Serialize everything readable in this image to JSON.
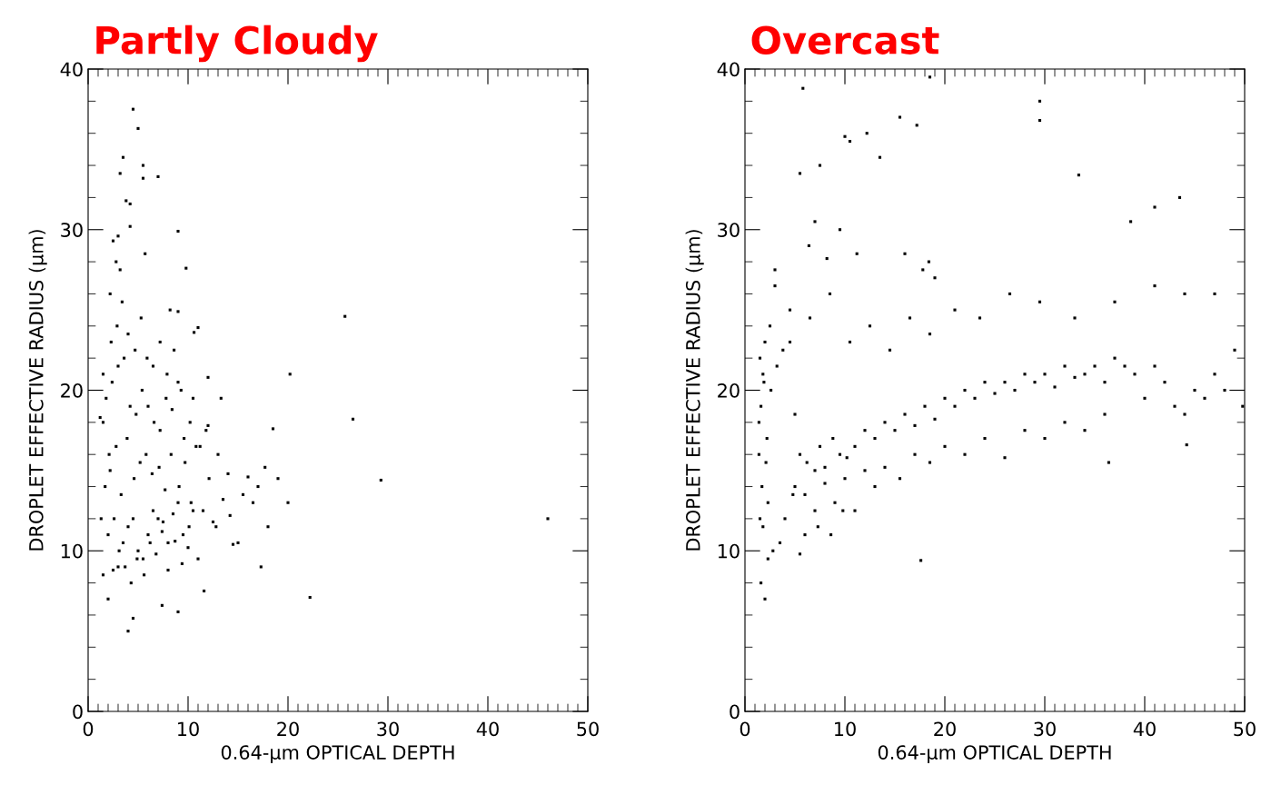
{
  "chart_data": [
    {
      "type": "scatter",
      "title": "Partly Cloudy",
      "xlabel": "0.64-μm OPTICAL DEPTH",
      "ylabel": "DROPLET EFFECTIVE RADIUS (μm)",
      "color": "#000000",
      "marker": "square",
      "xlim": [
        0,
        50
      ],
      "ylim": [
        0,
        40
      ],
      "xticks": [
        0,
        10,
        20,
        30,
        40,
        50
      ],
      "yticks": [
        0,
        10,
        20,
        30,
        40
      ],
      "x": [
        4.5,
        5.0,
        3.5,
        3.2,
        5.5,
        5.5,
        7.0,
        3.8,
        4.2,
        4.2,
        9.0,
        9.8,
        5.7,
        25.7,
        26.5,
        20.2,
        29.3,
        46.0,
        22.2,
        17.3,
        4.0,
        4.5,
        11.0,
        10.6,
        8.2,
        9.0,
        2.5,
        3.0,
        2.8,
        3.2,
        2.2,
        1.5,
        1.2,
        1.5,
        19.0,
        18.5,
        17.7,
        18.0,
        15.0,
        14.5,
        13.3,
        12.0,
        16.0,
        17.0,
        20.0,
        9.0,
        11.6,
        7.4,
        2.0,
        1.5,
        2.5,
        3.0,
        3.5,
        4.0,
        4.5,
        5.0,
        5.5,
        6.0,
        6.5,
        7.0,
        7.5,
        8.0,
        8.5,
        9.0,
        9.5,
        10.0,
        10.5,
        11.0,
        2.2,
        2.8,
        3.3,
        3.9,
        4.6,
        5.2,
        5.8,
        6.4,
        7.1,
        7.7,
        8.3,
        9.1,
        9.7,
        10.3,
        11.2,
        12.1,
        2.0,
        2.6,
        3.1,
        3.7,
        4.3,
        4.9,
        5.6,
        6.2,
        6.8,
        7.4,
        8.0,
        8.7,
        9.4,
        10.1,
        11.5,
        12.5,
        13.5,
        14.2,
        1.8,
        2.4,
        3.0,
        3.6,
        4.2,
        4.8,
        5.4,
        6.0,
        6.6,
        7.2,
        7.8,
        8.4,
        9.0,
        9.6,
        10.2,
        10.8,
        12.0,
        13.0,
        15.5,
        16.5,
        2.3,
        2.9,
        3.4,
        4.0,
        4.7,
        5.3,
        5.9,
        6.5,
        7.2,
        7.9,
        8.6,
        9.3,
        10.5,
        11.8,
        1.3,
        1.7,
        2.1,
        12.8,
        14.0
      ],
      "values": [
        37.5,
        36.3,
        34.5,
        33.5,
        34.0,
        33.2,
        33.3,
        31.8,
        31.6,
        30.2,
        29.9,
        27.6,
        28.5,
        24.6,
        18.2,
        21.0,
        14.4,
        12.0,
        7.1,
        9.0,
        5.0,
        5.8,
        23.9,
        23.6,
        25.0,
        24.9,
        29.3,
        29.6,
        28.0,
        27.5,
        26.0,
        21.0,
        18.3,
        18.0,
        14.5,
        17.6,
        15.2,
        11.5,
        10.5,
        10.4,
        19.5,
        20.8,
        14.6,
        14.0,
        13.0,
        6.2,
        7.5,
        6.6,
        7.0,
        8.5,
        8.8,
        9.0,
        10.5,
        11.5,
        12.0,
        10.0,
        9.5,
        11.0,
        12.5,
        12.0,
        11.8,
        10.5,
        12.3,
        13.0,
        11.0,
        10.2,
        12.5,
        9.5,
        15.0,
        16.5,
        13.5,
        17.0,
        14.5,
        15.5,
        16.0,
        14.8,
        15.2,
        13.8,
        16.0,
        14.0,
        15.5,
        13.0,
        16.5,
        14.5,
        11.0,
        12.0,
        10.0,
        9.0,
        8.0,
        9.5,
        8.5,
        10.5,
        9.8,
        11.2,
        8.8,
        10.6,
        9.2,
        11.5,
        12.5,
        11.8,
        13.2,
        12.2,
        19.5,
        20.5,
        21.5,
        22.0,
        19.0,
        18.5,
        20.0,
        19.0,
        18.0,
        17.5,
        19.5,
        18.8,
        20.5,
        17.0,
        18.0,
        16.5,
        17.8,
        16.0,
        13.5,
        13.0,
        23.0,
        24.0,
        25.5,
        23.5,
        22.5,
        24.5,
        22.0,
        21.5,
        23.0,
        21.0,
        22.5,
        20.0,
        19.5,
        17.5,
        12.0,
        14.0,
        16.0,
        11.5,
        14.8
      ]
    },
    {
      "type": "scatter",
      "title": "Overcast",
      "xlabel": "0.64-μm OPTICAL DEPTH",
      "ylabel": "DROPLET EFFECTIVE RADIUS (μm)",
      "color": "#000000",
      "marker": "square",
      "xlim": [
        0,
        50
      ],
      "ylim": [
        0,
        40
      ],
      "xticks": [
        0,
        10,
        20,
        30,
        40,
        50
      ],
      "yticks": [
        0,
        10,
        20,
        30,
        40
      ],
      "x": [
        1.5,
        1.8,
        2.0,
        1.6,
        1.9,
        2.5,
        3.0,
        2.2,
        1.4,
        1.7,
        2.1,
        1.5,
        1.8,
        2.3,
        1.6,
        2.0,
        1.4,
        2.6,
        3.2,
        3.8,
        4.5,
        5.0,
        5.5,
        6.2,
        7.0,
        7.5,
        8.0,
        8.8,
        9.5,
        10.2,
        11.0,
        12.0,
        13.0,
        14.0,
        15.0,
        16.0,
        17.0,
        18.0,
        19.0,
        20.0,
        21.0,
        22.0,
        23.0,
        24.0,
        25.0,
        26.0,
        27.0,
        28.0,
        29.0,
        30.0,
        31.0,
        32.0,
        33.0,
        34.0,
        35.0,
        36.0,
        37.0,
        38.0,
        39.0,
        40.0,
        41.0,
        42.0,
        43.0,
        44.0,
        45.0,
        46.0,
        47.0,
        48.0,
        49.0,
        49.8,
        5.0,
        6.0,
        7.0,
        8.0,
        9.0,
        10.0,
        11.0,
        12.0,
        13.0,
        14.0,
        15.5,
        17.0,
        18.5,
        20.0,
        22.0,
        24.0,
        26.0,
        28.0,
        30.0,
        32.0,
        34.0,
        36.0,
        3.0,
        4.5,
        6.5,
        8.5,
        10.5,
        12.5,
        14.5,
        16.5,
        18.5,
        21.0,
        23.5,
        26.5,
        29.5,
        33.0,
        37.0,
        41.0,
        44.0,
        47.0,
        5.5,
        7.5,
        10.5,
        12.2,
        13.5,
        15.5,
        17.2,
        18.5,
        29.5,
        29.5,
        43.5,
        41.0,
        38.6,
        33.4,
        7.0,
        8.2,
        9.5,
        11.2,
        18.4,
        16.0,
        17.8,
        19.0,
        36.4,
        44.2,
        2.3,
        2.8,
        3.5,
        4.0,
        4.8,
        5.5,
        6.0,
        7.3,
        8.6,
        9.8,
        5.8,
        6.4,
        10.0,
        17.6
      ],
      "values": [
        22.0,
        21.0,
        23.0,
        19.0,
        20.5,
        24.0,
        26.5,
        17.0,
        16.0,
        14.0,
        15.5,
        12.0,
        11.5,
        13.0,
        8.0,
        7.0,
        18.0,
        20.0,
        21.5,
        22.5,
        23.0,
        18.5,
        16.0,
        15.5,
        15.0,
        16.5,
        15.2,
        17.0,
        16.0,
        15.8,
        16.5,
        17.5,
        17.0,
        18.0,
        17.5,
        18.5,
        17.8,
        19.0,
        18.2,
        19.5,
        19.0,
        20.0,
        19.5,
        20.5,
        19.8,
        20.5,
        20.0,
        21.0,
        20.5,
        21.0,
        20.2,
        21.5,
        20.8,
        21.0,
        21.5,
        20.5,
        22.0,
        21.5,
        21.0,
        19.5,
        21.5,
        20.5,
        19.0,
        18.5,
        20.0,
        19.5,
        21.0,
        20.0,
        22.5,
        19.0,
        14.0,
        13.5,
        12.5,
        14.2,
        13.0,
        14.5,
        12.5,
        15.0,
        14.0,
        15.2,
        14.5,
        16.0,
        15.5,
        16.5,
        16.0,
        17.0,
        15.8,
        17.5,
        17.0,
        18.0,
        17.5,
        18.5,
        27.5,
        25.0,
        24.5,
        26.0,
        23.0,
        24.0,
        22.5,
        24.5,
        23.5,
        25.0,
        24.5,
        26.0,
        25.5,
        24.5,
        25.5,
        26.5,
        26.0,
        26.0,
        33.5,
        34.0,
        35.5,
        36.0,
        34.5,
        37.0,
        36.5,
        39.5,
        38.0,
        36.8,
        32.0,
        31.4,
        30.5,
        33.4,
        30.5,
        28.2,
        30.0,
        28.5,
        28.0,
        28.5,
        27.5,
        27.0,
        15.5,
        16.6,
        9.5,
        10.0,
        10.5,
        12.0,
        13.5,
        9.8,
        11.0,
        11.5,
        11.0,
        12.5,
        38.8,
        29.0,
        35.8,
        9.4
      ]
    }
  ]
}
